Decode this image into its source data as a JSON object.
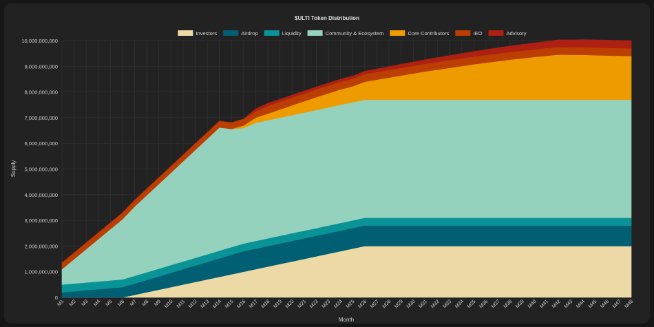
{
  "chart_data": {
    "type": "area",
    "stacked": true,
    "title": "$ULTI Token Distribution",
    "xlabel": "Month",
    "ylabel": "Supply",
    "ylim": [
      0,
      10000000000
    ],
    "y_ticks": [
      0,
      1000000000,
      2000000000,
      3000000000,
      4000000000,
      5000000000,
      6000000000,
      7000000000,
      8000000000,
      9000000000,
      10000000000
    ],
    "y_tick_labels": [
      "0",
      "1,000,000,000",
      "2,000,000,000",
      "3,000,000,000",
      "4,000,000,000",
      "5,000,000,000",
      "6,000,000,000",
      "7,000,000,000",
      "8,000,000,000",
      "9,000,000,000",
      "10,000,000,000"
    ],
    "categories": [
      "M1",
      "M2",
      "M3",
      "M4",
      "M5",
      "M6",
      "M7",
      "M8",
      "M9",
      "M10",
      "M11",
      "M12",
      "M13",
      "M14",
      "M15",
      "M16",
      "M17",
      "M18",
      "M19",
      "M20",
      "M21",
      "M22",
      "M23",
      "M24",
      "M25",
      "M26",
      "M27",
      "M28",
      "M29",
      "M30",
      "M31",
      "M32",
      "M33",
      "M34",
      "M35",
      "M36",
      "M37",
      "M38",
      "M39",
      "M40",
      "M41",
      "M42",
      "M43",
      "M44",
      "M45",
      "M46",
      "M47",
      "M48"
    ],
    "legend_position": "top-center",
    "grid": true,
    "series": [
      {
        "name": "Investors",
        "color": "#ecd9a6",
        "values": [
          0,
          0,
          0,
          0,
          0,
          0,
          100000000,
          200000000,
          300000000,
          400000000,
          500000000,
          600000000,
          700000000,
          800000000,
          900000000,
          1000000000,
          1100000000,
          1200000000,
          1300000000,
          1400000000,
          1500000000,
          1600000000,
          1700000000,
          1800000000,
          1900000000,
          2000000000,
          2000000000,
          2000000000,
          2000000000,
          2000000000,
          2000000000,
          2000000000,
          2000000000,
          2000000000,
          2000000000,
          2000000000,
          2000000000,
          2000000000,
          2000000000,
          2000000000,
          2000000000,
          2000000000,
          2000000000,
          2000000000,
          2000000000,
          2000000000,
          2000000000,
          2000000000
        ]
      },
      {
        "name": "Airdrop",
        "color": "#005f73",
        "values": [
          200000000,
          240000000,
          280000000,
          320000000,
          360000000,
          400000000,
          440000000,
          480000000,
          520000000,
          560000000,
          600000000,
          640000000,
          680000000,
          720000000,
          760000000,
          800000000,
          800000000,
          800000000,
          800000000,
          800000000,
          800000000,
          800000000,
          800000000,
          800000000,
          800000000,
          800000000,
          800000000,
          800000000,
          800000000,
          800000000,
          800000000,
          800000000,
          800000000,
          800000000,
          800000000,
          800000000,
          800000000,
          800000000,
          800000000,
          800000000,
          800000000,
          800000000,
          800000000,
          800000000,
          800000000,
          800000000,
          800000000,
          800000000
        ]
      },
      {
        "name": "Liquidity",
        "color": "#0a9396",
        "values": [
          300000000,
          300000000,
          300000000,
          300000000,
          300000000,
          300000000,
          300000000,
          300000000,
          300000000,
          300000000,
          300000000,
          300000000,
          300000000,
          300000000,
          300000000,
          300000000,
          300000000,
          300000000,
          300000000,
          300000000,
          300000000,
          300000000,
          300000000,
          300000000,
          300000000,
          300000000,
          300000000,
          300000000,
          300000000,
          300000000,
          300000000,
          300000000,
          300000000,
          300000000,
          300000000,
          300000000,
          300000000,
          300000000,
          300000000,
          300000000,
          300000000,
          300000000,
          300000000,
          300000000,
          300000000,
          300000000,
          300000000,
          300000000
        ]
      },
      {
        "name": "Community & Ecosystem",
        "color": "#94d2bd",
        "values": [
          600000000,
          950000000,
          1300000000,
          1650000000,
          2000000000,
          2350000000,
          2700000000,
          3000000000,
          3300000000,
          3600000000,
          3900000000,
          4200000000,
          4500000000,
          4800000000,
          4600000000,
          4500000000,
          4600000000,
          4600000000,
          4600000000,
          4600000000,
          4600000000,
          4600000000,
          4600000000,
          4600000000,
          4600000000,
          4600000000,
          4600000000,
          4600000000,
          4600000000,
          4600000000,
          4600000000,
          4600000000,
          4600000000,
          4600000000,
          4600000000,
          4600000000,
          4600000000,
          4600000000,
          4600000000,
          4600000000,
          4600000000,
          4600000000,
          4600000000,
          4600000000,
          4600000000,
          4600000000,
          4600000000,
          4600000000
        ]
      },
      {
        "name": "Core Contributors",
        "color": "#ee9b00",
        "values": [
          0,
          0,
          0,
          0,
          0,
          0,
          0,
          0,
          0,
          0,
          0,
          0,
          0,
          0,
          0,
          100000000,
          200000000,
          260000000,
          320000000,
          380000000,
          440000000,
          500000000,
          550000000,
          600000000,
          620000000,
          700000000,
          780000000,
          860000000,
          940000000,
          1020000000,
          1100000000,
          1170000000,
          1240000000,
          1310000000,
          1380000000,
          1440000000,
          1500000000,
          1560000000,
          1610000000,
          1660000000,
          1710000000,
          1760000000,
          1750000000,
          1750000000,
          1730000000,
          1720000000,
          1710000000,
          1700000000
        ]
      },
      {
        "name": "IEO",
        "color": "#bb3e03",
        "values": [
          250000000,
          250000000,
          250000000,
          250000000,
          250000000,
          250000000,
          250000000,
          250000000,
          250000000,
          250000000,
          250000000,
          250000000,
          250000000,
          250000000,
          250000000,
          250000000,
          250000000,
          300000000,
          300000000,
          300000000,
          300000000,
          300000000,
          300000000,
          300000000,
          300000000,
          300000000,
          300000000,
          300000000,
          300000000,
          300000000,
          300000000,
          300000000,
          300000000,
          300000000,
          300000000,
          300000000,
          300000000,
          300000000,
          300000000,
          300000000,
          300000000,
          300000000,
          300000000,
          300000000,
          300000000,
          300000000,
          300000000,
          300000000
        ]
      },
      {
        "name": "Advisory",
        "color": "#ae2012",
        "values": [
          0,
          0,
          0,
          0,
          0,
          0,
          0,
          0,
          0,
          0,
          0,
          0,
          0,
          0,
          0,
          0,
          100000000,
          100000000,
          100000000,
          100000000,
          100000000,
          100000000,
          100000000,
          100000000,
          100000000,
          110000000,
          120000000,
          130000000,
          140000000,
          150000000,
          160000000,
          170000000,
          180000000,
          190000000,
          200000000,
          210000000,
          220000000,
          230000000,
          240000000,
          250000000,
          260000000,
          270000000,
          280000000,
          290000000,
          300000000,
          300000000,
          300000000,
          300000000
        ]
      }
    ]
  }
}
